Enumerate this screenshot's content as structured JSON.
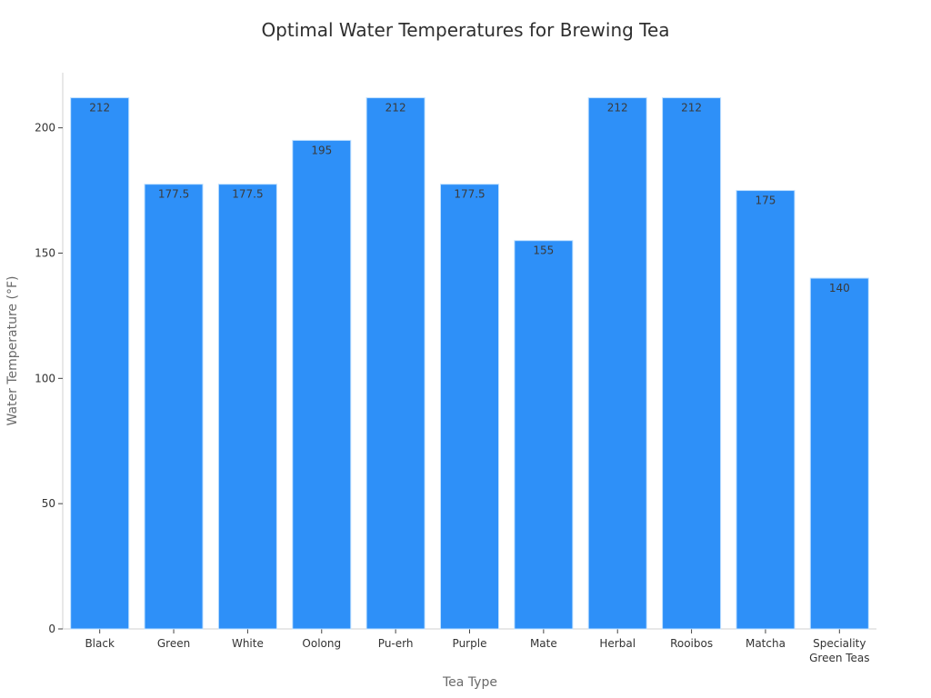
{
  "chart_data": {
    "type": "bar",
    "title": "Optimal Water Temperatures for Brewing Tea",
    "xlabel": "Tea Type",
    "ylabel": "Water Temperature (°F)",
    "categories": [
      "Black",
      "Green",
      "White",
      "Oolong",
      "Pu-erh",
      "Purple",
      "Mate",
      "Herbal",
      "Rooibos",
      "Matcha",
      "Speciality Green Teas"
    ],
    "category_lines": [
      [
        "Black"
      ],
      [
        "Green"
      ],
      [
        "White"
      ],
      [
        "Oolong"
      ],
      [
        "Pu-erh"
      ],
      [
        "Purple"
      ],
      [
        "Mate"
      ],
      [
        "Herbal"
      ],
      [
        "Rooibos"
      ],
      [
        "Matcha"
      ],
      [
        "Speciality",
        "Green Teas"
      ]
    ],
    "values": [
      212,
      177.5,
      177.5,
      195,
      212,
      177.5,
      155,
      212,
      212,
      175,
      140
    ],
    "data_labels": [
      "212",
      "177.5",
      "177.5",
      "195",
      "212",
      "177.5",
      "155",
      "212",
      "212",
      "175",
      "140"
    ],
    "yticks": [
      0,
      50,
      100,
      150,
      200
    ],
    "ylim": [
      0,
      222
    ],
    "grid": false,
    "legend": "none",
    "bar_color": "#2e90f8"
  }
}
